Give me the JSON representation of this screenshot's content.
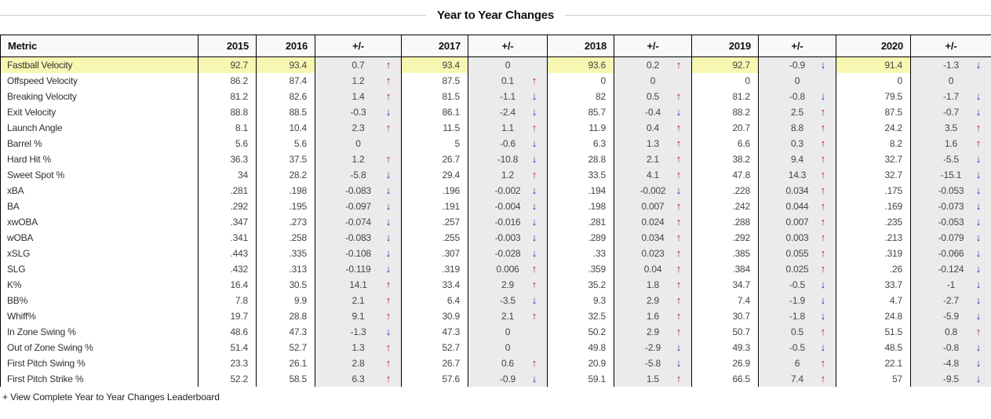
{
  "title": "Year to Year Changes",
  "footer": {
    "link_label": "+ View Complete Year to Year Changes Leaderboard"
  },
  "icons": {
    "up_arrow": "↑",
    "down_arrow": "↓"
  },
  "colors": {
    "highlight_yellow": "#f7f7b2",
    "diff_column_bg": "#ebebeb",
    "up_arrow_red": "#b11f29",
    "down_arrow_blue": "#2a22b4",
    "header_bg": "#f7f9fa",
    "divider_line": "#cccccc"
  },
  "table": {
    "columns": [
      "Metric",
      "2015",
      "2016",
      "+/-",
      "2017",
      "+/-",
      "2018",
      "+/-",
      "2019",
      "+/-",
      "2020",
      "+/-"
    ],
    "rows": [
      {
        "metric": "Fastball Velocity",
        "highlight": true,
        "values": [
          {
            "v": "92.7"
          },
          {
            "v": "93.4"
          },
          {
            "v": "0.7",
            "d": "up"
          },
          {
            "v": "93.4"
          },
          {
            "v": "0"
          },
          {
            "v": "93.6"
          },
          {
            "v": "0.2",
            "d": "up"
          },
          {
            "v": "92.7"
          },
          {
            "v": "-0.9",
            "d": "down"
          },
          {
            "v": "91.4"
          },
          {
            "v": "-1.3",
            "d": "down"
          }
        ]
      },
      {
        "metric": "Offspeed Velocity",
        "highlight": false,
        "values": [
          {
            "v": "86.2"
          },
          {
            "v": "87.4"
          },
          {
            "v": "1.2",
            "d": "up"
          },
          {
            "v": "87.5"
          },
          {
            "v": "0.1",
            "d": "up"
          },
          {
            "v": "0"
          },
          {
            "v": "0"
          },
          {
            "v": "0"
          },
          {
            "v": "0"
          },
          {
            "v": "0"
          },
          {
            "v": "0"
          }
        ]
      },
      {
        "metric": "Breaking Velocity",
        "highlight": false,
        "values": [
          {
            "v": "81.2"
          },
          {
            "v": "82.6"
          },
          {
            "v": "1.4",
            "d": "up"
          },
          {
            "v": "81.5"
          },
          {
            "v": "-1.1",
            "d": "down"
          },
          {
            "v": "82"
          },
          {
            "v": "0.5",
            "d": "up"
          },
          {
            "v": "81.2"
          },
          {
            "v": "-0.8",
            "d": "down"
          },
          {
            "v": "79.5"
          },
          {
            "v": "-1.7",
            "d": "down"
          }
        ]
      },
      {
        "metric": "Exit Velocity",
        "highlight": false,
        "values": [
          {
            "v": "88.8"
          },
          {
            "v": "88.5"
          },
          {
            "v": "-0.3",
            "d": "down"
          },
          {
            "v": "86.1"
          },
          {
            "v": "-2.4",
            "d": "down"
          },
          {
            "v": "85.7"
          },
          {
            "v": "-0.4",
            "d": "down"
          },
          {
            "v": "88.2"
          },
          {
            "v": "2.5",
            "d": "up"
          },
          {
            "v": "87.5"
          },
          {
            "v": "-0.7",
            "d": "down"
          }
        ]
      },
      {
        "metric": "Launch Angle",
        "highlight": false,
        "values": [
          {
            "v": "8.1"
          },
          {
            "v": "10.4"
          },
          {
            "v": "2.3",
            "d": "up"
          },
          {
            "v": "11.5"
          },
          {
            "v": "1.1",
            "d": "up"
          },
          {
            "v": "11.9"
          },
          {
            "v": "0.4",
            "d": "up"
          },
          {
            "v": "20.7"
          },
          {
            "v": "8.8",
            "d": "up"
          },
          {
            "v": "24.2"
          },
          {
            "v": "3.5",
            "d": "up"
          }
        ]
      },
      {
        "metric": "Barrel %",
        "highlight": false,
        "values": [
          {
            "v": "5.6"
          },
          {
            "v": "5.6"
          },
          {
            "v": "0"
          },
          {
            "v": "5"
          },
          {
            "v": "-0.6",
            "d": "down"
          },
          {
            "v": "6.3"
          },
          {
            "v": "1.3",
            "d": "up"
          },
          {
            "v": "6.6"
          },
          {
            "v": "0.3",
            "d": "up"
          },
          {
            "v": "8.2"
          },
          {
            "v": "1.6",
            "d": "up"
          }
        ]
      },
      {
        "metric": "Hard Hit %",
        "highlight": false,
        "values": [
          {
            "v": "36.3"
          },
          {
            "v": "37.5"
          },
          {
            "v": "1.2",
            "d": "up"
          },
          {
            "v": "26.7"
          },
          {
            "v": "-10.8",
            "d": "down"
          },
          {
            "v": "28.8"
          },
          {
            "v": "2.1",
            "d": "up"
          },
          {
            "v": "38.2"
          },
          {
            "v": "9.4",
            "d": "up"
          },
          {
            "v": "32.7"
          },
          {
            "v": "-5.5",
            "d": "down"
          }
        ]
      },
      {
        "metric": "Sweet Spot %",
        "highlight": false,
        "values": [
          {
            "v": "34"
          },
          {
            "v": "28.2"
          },
          {
            "v": "-5.8",
            "d": "down"
          },
          {
            "v": "29.4"
          },
          {
            "v": "1.2",
            "d": "up"
          },
          {
            "v": "33.5"
          },
          {
            "v": "4.1",
            "d": "up"
          },
          {
            "v": "47.8"
          },
          {
            "v": "14.3",
            "d": "up"
          },
          {
            "v": "32.7"
          },
          {
            "v": "-15.1",
            "d": "down"
          }
        ]
      },
      {
        "metric": "xBA",
        "highlight": false,
        "values": [
          {
            "v": ".281"
          },
          {
            "v": ".198"
          },
          {
            "v": "-0.083",
            "d": "down"
          },
          {
            "v": ".196"
          },
          {
            "v": "-0.002",
            "d": "down"
          },
          {
            "v": ".194"
          },
          {
            "v": "-0.002",
            "d": "down"
          },
          {
            "v": ".228"
          },
          {
            "v": "0.034",
            "d": "up"
          },
          {
            "v": ".175"
          },
          {
            "v": "-0.053",
            "d": "down"
          }
        ]
      },
      {
        "metric": "BA",
        "highlight": false,
        "values": [
          {
            "v": ".292"
          },
          {
            "v": ".195"
          },
          {
            "v": "-0.097",
            "d": "down"
          },
          {
            "v": ".191"
          },
          {
            "v": "-0.004",
            "d": "down"
          },
          {
            "v": ".198"
          },
          {
            "v": "0.007",
            "d": "up"
          },
          {
            "v": ".242"
          },
          {
            "v": "0.044",
            "d": "up"
          },
          {
            "v": ".169"
          },
          {
            "v": "-0.073",
            "d": "down"
          }
        ]
      },
      {
        "metric": "xwOBA",
        "highlight": false,
        "values": [
          {
            "v": ".347"
          },
          {
            "v": ".273"
          },
          {
            "v": "-0.074",
            "d": "down"
          },
          {
            "v": ".257"
          },
          {
            "v": "-0.016",
            "d": "down"
          },
          {
            "v": ".281"
          },
          {
            "v": "0.024",
            "d": "up"
          },
          {
            "v": ".288"
          },
          {
            "v": "0.007",
            "d": "up"
          },
          {
            "v": ".235"
          },
          {
            "v": "-0.053",
            "d": "down"
          }
        ]
      },
      {
        "metric": "wOBA",
        "highlight": false,
        "values": [
          {
            "v": ".341"
          },
          {
            "v": ".258"
          },
          {
            "v": "-0.083",
            "d": "down"
          },
          {
            "v": ".255"
          },
          {
            "v": "-0.003",
            "d": "down"
          },
          {
            "v": ".289"
          },
          {
            "v": "0.034",
            "d": "up"
          },
          {
            "v": ".292"
          },
          {
            "v": "0.003",
            "d": "up"
          },
          {
            "v": ".213"
          },
          {
            "v": "-0.079",
            "d": "down"
          }
        ]
      },
      {
        "metric": "xSLG",
        "highlight": false,
        "values": [
          {
            "v": ".443"
          },
          {
            "v": ".335"
          },
          {
            "v": "-0.108",
            "d": "down"
          },
          {
            "v": ".307"
          },
          {
            "v": "-0.028",
            "d": "down"
          },
          {
            "v": ".33"
          },
          {
            "v": "0.023",
            "d": "up"
          },
          {
            "v": ".385"
          },
          {
            "v": "0.055",
            "d": "up"
          },
          {
            "v": ".319"
          },
          {
            "v": "-0.066",
            "d": "down"
          }
        ]
      },
      {
        "metric": "SLG",
        "highlight": false,
        "values": [
          {
            "v": ".432"
          },
          {
            "v": ".313"
          },
          {
            "v": "-0.119",
            "d": "down"
          },
          {
            "v": ".319"
          },
          {
            "v": "0.006",
            "d": "up"
          },
          {
            "v": ".359"
          },
          {
            "v": "0.04",
            "d": "up"
          },
          {
            "v": ".384"
          },
          {
            "v": "0.025",
            "d": "up"
          },
          {
            "v": ".26"
          },
          {
            "v": "-0.124",
            "d": "down"
          }
        ]
      },
      {
        "metric": "K%",
        "highlight": false,
        "values": [
          {
            "v": "16.4"
          },
          {
            "v": "30.5"
          },
          {
            "v": "14.1",
            "d": "up"
          },
          {
            "v": "33.4"
          },
          {
            "v": "2.9",
            "d": "up"
          },
          {
            "v": "35.2"
          },
          {
            "v": "1.8",
            "d": "up"
          },
          {
            "v": "34.7"
          },
          {
            "v": "-0.5",
            "d": "down"
          },
          {
            "v": "33.7"
          },
          {
            "v": "-1",
            "d": "down"
          }
        ]
      },
      {
        "metric": "BB%",
        "highlight": false,
        "values": [
          {
            "v": "7.8"
          },
          {
            "v": "9.9"
          },
          {
            "v": "2.1",
            "d": "up"
          },
          {
            "v": "6.4"
          },
          {
            "v": "-3.5",
            "d": "down"
          },
          {
            "v": "9.3"
          },
          {
            "v": "2.9",
            "d": "up"
          },
          {
            "v": "7.4"
          },
          {
            "v": "-1.9",
            "d": "down"
          },
          {
            "v": "4.7"
          },
          {
            "v": "-2.7",
            "d": "down"
          }
        ]
      },
      {
        "metric": "Whiff%",
        "highlight": false,
        "values": [
          {
            "v": "19.7"
          },
          {
            "v": "28.8"
          },
          {
            "v": "9.1",
            "d": "up"
          },
          {
            "v": "30.9"
          },
          {
            "v": "2.1",
            "d": "up"
          },
          {
            "v": "32.5"
          },
          {
            "v": "1.6",
            "d": "up"
          },
          {
            "v": "30.7"
          },
          {
            "v": "-1.8",
            "d": "down"
          },
          {
            "v": "24.8"
          },
          {
            "v": "-5.9",
            "d": "down"
          }
        ]
      },
      {
        "metric": "In Zone Swing %",
        "highlight": false,
        "values": [
          {
            "v": "48.6"
          },
          {
            "v": "47.3"
          },
          {
            "v": "-1.3",
            "d": "down"
          },
          {
            "v": "47.3"
          },
          {
            "v": "0"
          },
          {
            "v": "50.2"
          },
          {
            "v": "2.9",
            "d": "up"
          },
          {
            "v": "50.7"
          },
          {
            "v": "0.5",
            "d": "up"
          },
          {
            "v": "51.5"
          },
          {
            "v": "0.8",
            "d": "up"
          }
        ]
      },
      {
        "metric": "Out of Zone Swing %",
        "highlight": false,
        "values": [
          {
            "v": "51.4"
          },
          {
            "v": "52.7"
          },
          {
            "v": "1.3",
            "d": "up"
          },
          {
            "v": "52.7"
          },
          {
            "v": "0"
          },
          {
            "v": "49.8"
          },
          {
            "v": "-2.9",
            "d": "down"
          },
          {
            "v": "49.3"
          },
          {
            "v": "-0.5",
            "d": "down"
          },
          {
            "v": "48.5"
          },
          {
            "v": "-0.8",
            "d": "down"
          }
        ]
      },
      {
        "metric": "First Pitch Swing %",
        "highlight": false,
        "values": [
          {
            "v": "23.3"
          },
          {
            "v": "26.1"
          },
          {
            "v": "2.8",
            "d": "up"
          },
          {
            "v": "26.7"
          },
          {
            "v": "0.6",
            "d": "up"
          },
          {
            "v": "20.9"
          },
          {
            "v": "-5.8",
            "d": "down"
          },
          {
            "v": "26.9"
          },
          {
            "v": "6",
            "d": "up"
          },
          {
            "v": "22.1"
          },
          {
            "v": "-4.8",
            "d": "down"
          }
        ]
      },
      {
        "metric": "First Pitch Strike %",
        "highlight": false,
        "values": [
          {
            "v": "52.2"
          },
          {
            "v": "58.5"
          },
          {
            "v": "6.3",
            "d": "up"
          },
          {
            "v": "57.6"
          },
          {
            "v": "-0.9",
            "d": "down"
          },
          {
            "v": "59.1"
          },
          {
            "v": "1.5",
            "d": "up"
          },
          {
            "v": "66.5"
          },
          {
            "v": "7.4",
            "d": "up"
          },
          {
            "v": "57"
          },
          {
            "v": "-9.5",
            "d": "down"
          }
        ]
      }
    ]
  }
}
